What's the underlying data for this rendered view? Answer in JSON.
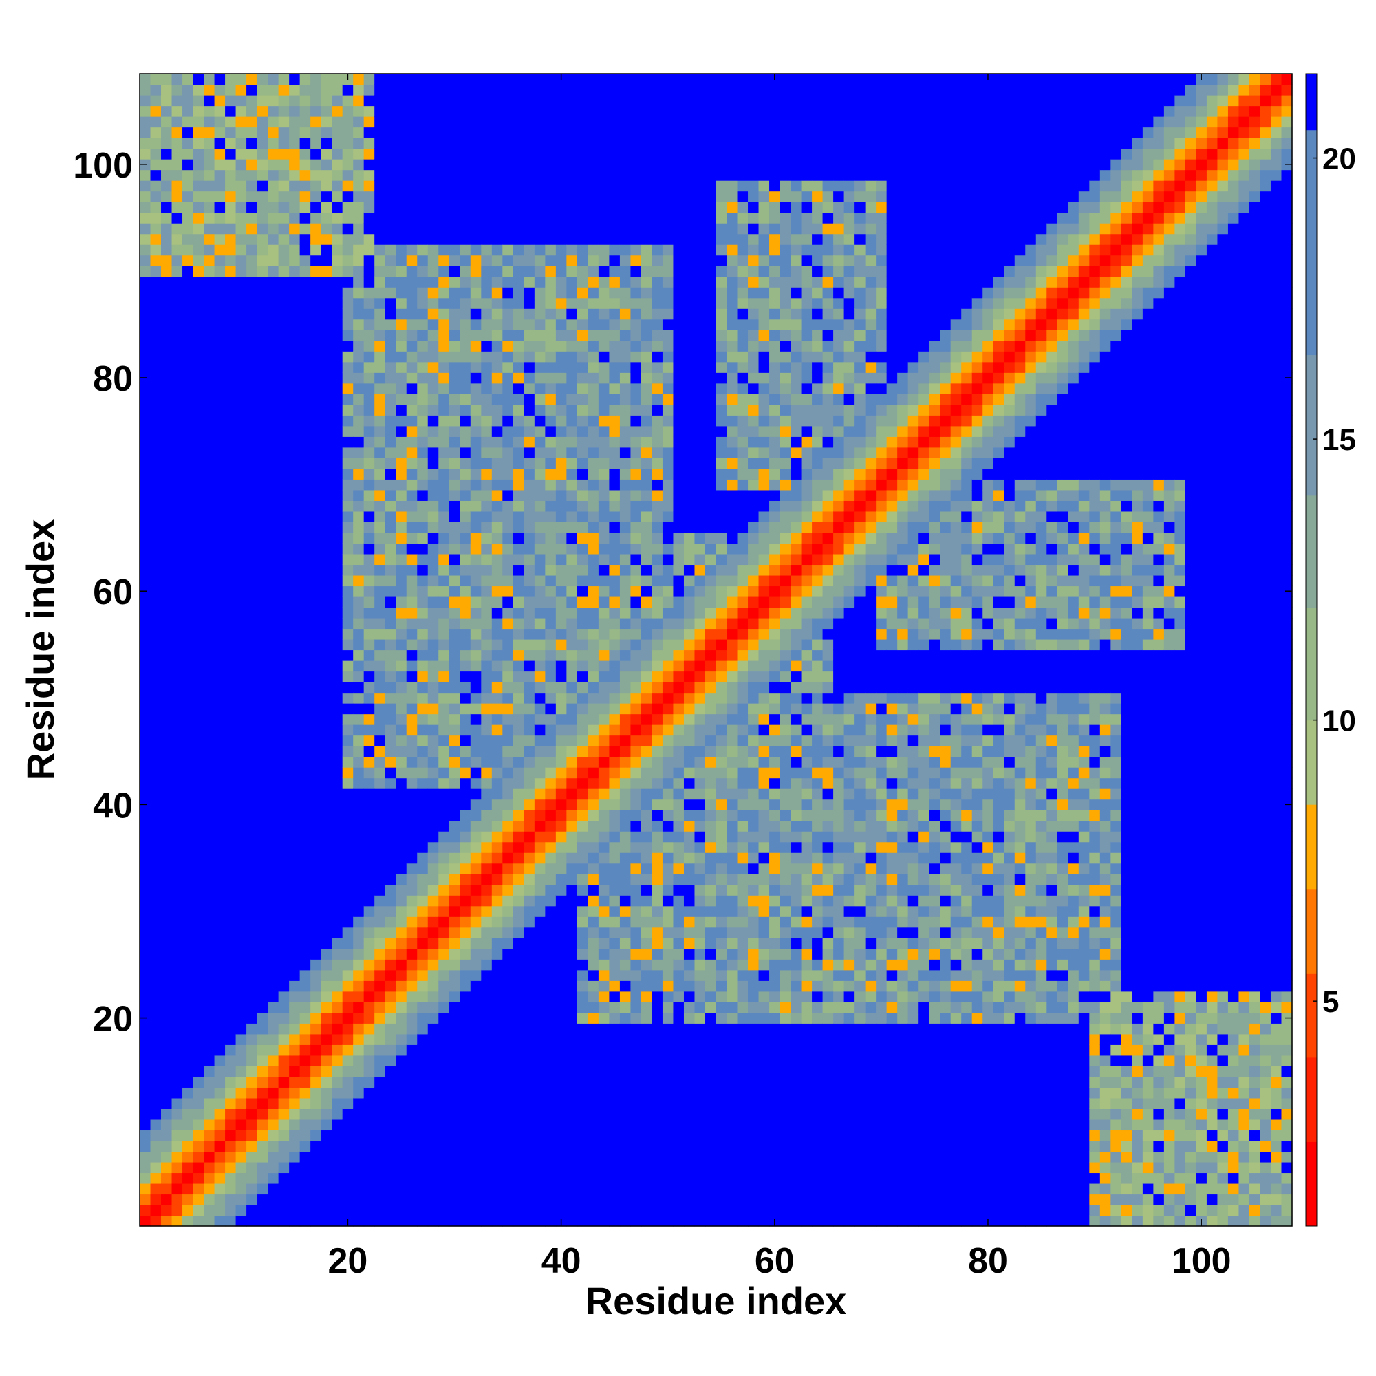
{
  "chart_data": {
    "type": "heatmap",
    "title": "",
    "xlabel": "Residue index",
    "ylabel": "Residue index",
    "n_residues": 108,
    "xlim": [
      0.5,
      108.5
    ],
    "ylim": [
      0.5,
      108.5
    ],
    "xticks": [
      20,
      40,
      60,
      80,
      100
    ],
    "yticks": [
      20,
      40,
      60,
      80,
      100
    ],
    "colorbar": {
      "ticks": [
        5,
        10,
        15,
        20
      ],
      "range": [
        1,
        21.5
      ],
      "levels": [
        {
          "from": 1,
          "to": 2.5,
          "color": "#ff0000"
        },
        {
          "from": 2.5,
          "to": 4,
          "color": "#ff2200"
        },
        {
          "from": 4,
          "to": 5.5,
          "color": "#ff4400"
        },
        {
          "from": 5.5,
          "to": 7,
          "color": "#ff7700"
        },
        {
          "from": 7,
          "to": 8.5,
          "color": "#ffaa00"
        },
        {
          "from": 8.5,
          "to": 10,
          "color": "#a8c080"
        },
        {
          "from": 10,
          "to": 12,
          "color": "#98b888"
        },
        {
          "from": 12,
          "to": 14,
          "color": "#88a898"
        },
        {
          "from": 14,
          "to": 16.5,
          "color": "#7898b0"
        },
        {
          "from": 16.5,
          "to": 20.5,
          "color": "#5c88c0"
        },
        {
          "from": 20.5,
          "to": 21.5,
          "color": "#0000ff"
        }
      ]
    },
    "structure_description_values": {
      "diagonal_band_halfwidth_residues": 8,
      "contact_blocks": [
        {
          "x": [
            1,
            22
          ],
          "y": [
            90,
            108
          ],
          "mean_distance": 12
        },
        {
          "x": [
            88,
            108
          ],
          "y": [
            1,
            22
          ],
          "mean_distance": 12
        },
        {
          "x": [
            20,
            50
          ],
          "y": [
            42,
            92
          ],
          "mean_distance": 15
        },
        {
          "x": [
            42,
            92
          ],
          "y": [
            20,
            50
          ],
          "mean_distance": 15
        },
        {
          "x": [
            55,
            70
          ],
          "y": [
            70,
            98
          ],
          "mean_distance": 15
        },
        {
          "x": [
            70,
            98
          ],
          "y": [
            55,
            70
          ],
          "mean_distance": 15
        },
        {
          "x": [
            40,
            65
          ],
          "y": [
            40,
            65
          ],
          "mean_distance": 14
        }
      ]
    }
  }
}
